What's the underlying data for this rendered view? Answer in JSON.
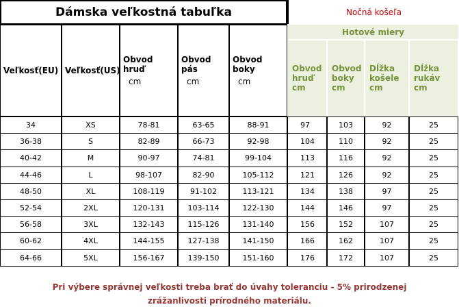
{
  "left_table": {
    "title": "Dámska veľkostná tabuľka",
    "headers": [
      [
        "Veľkosť(EU)"
      ],
      [
        "Veľkosť(US)"
      ],
      [
        "Obvod",
        "hruď",
        "cm"
      ],
      [
        "Obvod",
        "pás",
        "cm"
      ],
      [
        "Obvod",
        "boky",
        "cm"
      ]
    ]
  },
  "right_table": {
    "title": "Nočná košeľa",
    "subtitle": "Hotové miery",
    "headers": [
      [
        "Obvod",
        "hruď",
        "cm"
      ],
      [
        "Obvod",
        "boky",
        "cm"
      ],
      [
        "Dĺžka",
        "košele",
        "cm"
      ],
      [
        "Dĺžka",
        "rukáv",
        "cm"
      ]
    ]
  },
  "rows": [
    [
      "34",
      "XS",
      "78-81",
      "63-65",
      "88-91",
      97,
      103,
      92,
      25
    ],
    [
      "36-38",
      "S",
      "82-89",
      "66-73",
      "92-98",
      104,
      110,
      92,
      25
    ],
    [
      "40-42",
      "M",
      "90-97",
      "74-81",
      "99-104",
      113,
      116,
      92,
      25
    ],
    [
      "44-46",
      "L",
      "98-107",
      "82-90",
      "105-112",
      121,
      126,
      92,
      25
    ],
    [
      "48-50",
      "XL",
      "108-119",
      "91-102",
      "113-121",
      134,
      138,
      97,
      25
    ],
    [
      "52-54",
      "2XL",
      "120-131",
      "103-114",
      "122-130",
      144,
      146,
      97,
      25
    ],
    [
      "56-58",
      "3XL",
      "132-143",
      "115-126",
      "131-140",
      156,
      152,
      107,
      25
    ],
    [
      "60-62",
      "4XL",
      "144-155",
      "127-138",
      "141-150",
      166,
      162,
      107,
      25
    ],
    [
      "64-66",
      "5XL",
      "156-167",
      "139-150",
      "151-160",
      176,
      172,
      107,
      25
    ]
  ],
  "footer": [
    "Pri výbere správnej veľkosti treba brať do úvahy toleranciu - 5% prirodzenej",
    "zrážanlivosti prírodného materiálu."
  ]
}
